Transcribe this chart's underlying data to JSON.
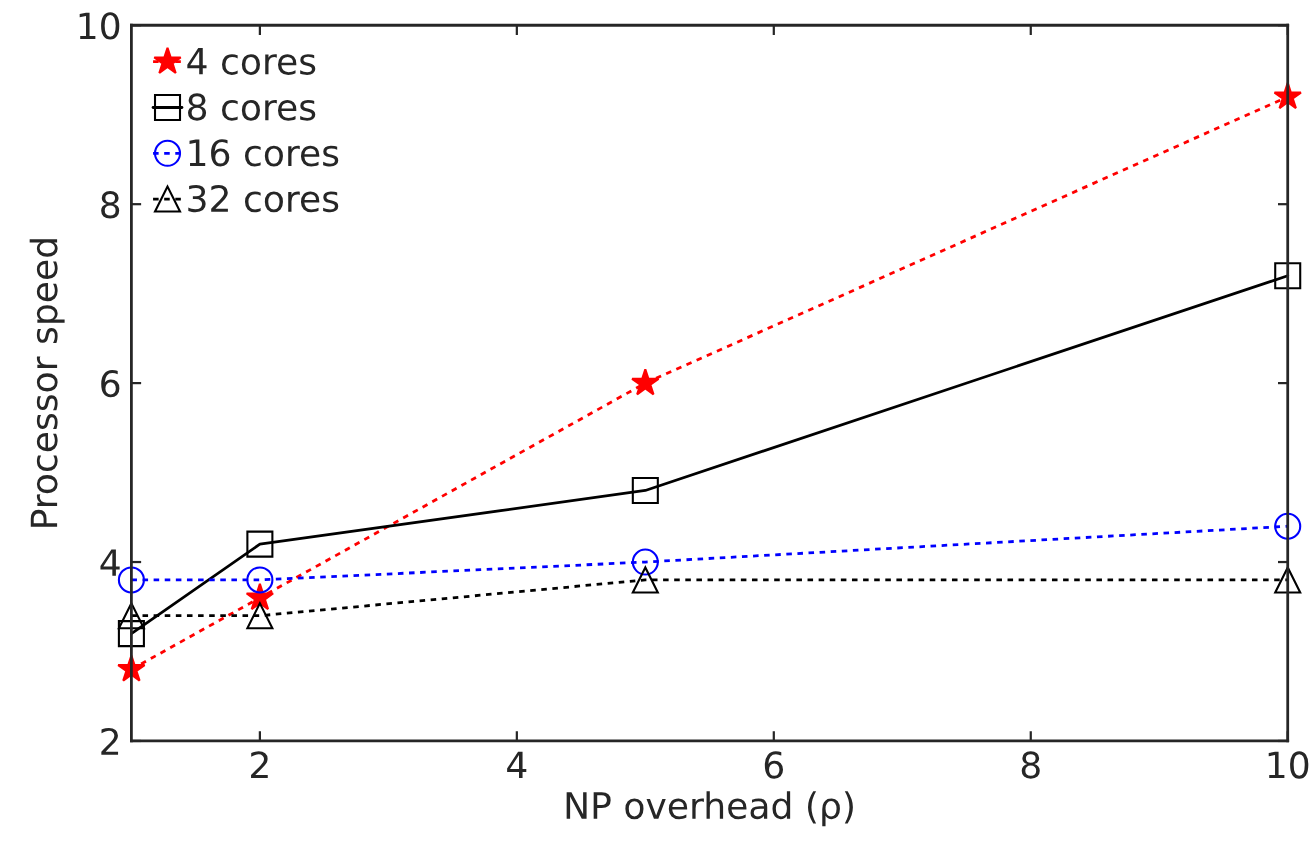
{
  "chart_data": {
    "type": "line",
    "xlabel": "NP overhead (ρ)",
    "ylabel": "Processor speed",
    "x": [
      1,
      2,
      5,
      10
    ],
    "series": [
      {
        "name": "4 cores",
        "color": "#ff0000",
        "marker": "star",
        "line_style": "dotted",
        "values": [
          2.8,
          3.6,
          6.0,
          9.2
        ]
      },
      {
        "name": "8 cores",
        "color": "#000000",
        "marker": "square",
        "line_style": "solid",
        "values": [
          3.2,
          4.2,
          4.8,
          7.2
        ]
      },
      {
        "name": "16 cores",
        "color": "#0000ff",
        "marker": "circle",
        "line_style": "dotted",
        "values": [
          3.8,
          3.8,
          4.0,
          4.4
        ]
      },
      {
        "name": "32 cores",
        "color": "#000000",
        "marker": "triangle",
        "line_style": "dotted",
        "values": [
          3.4,
          3.4,
          3.8,
          3.8
        ]
      }
    ],
    "xlim": [
      1,
      10
    ],
    "xticks": [
      2,
      4,
      6,
      8,
      10
    ],
    "ylim": [
      2,
      10
    ],
    "yticks": [
      2,
      4,
      6,
      8,
      10
    ],
    "grid": false,
    "legend": "top left"
  }
}
